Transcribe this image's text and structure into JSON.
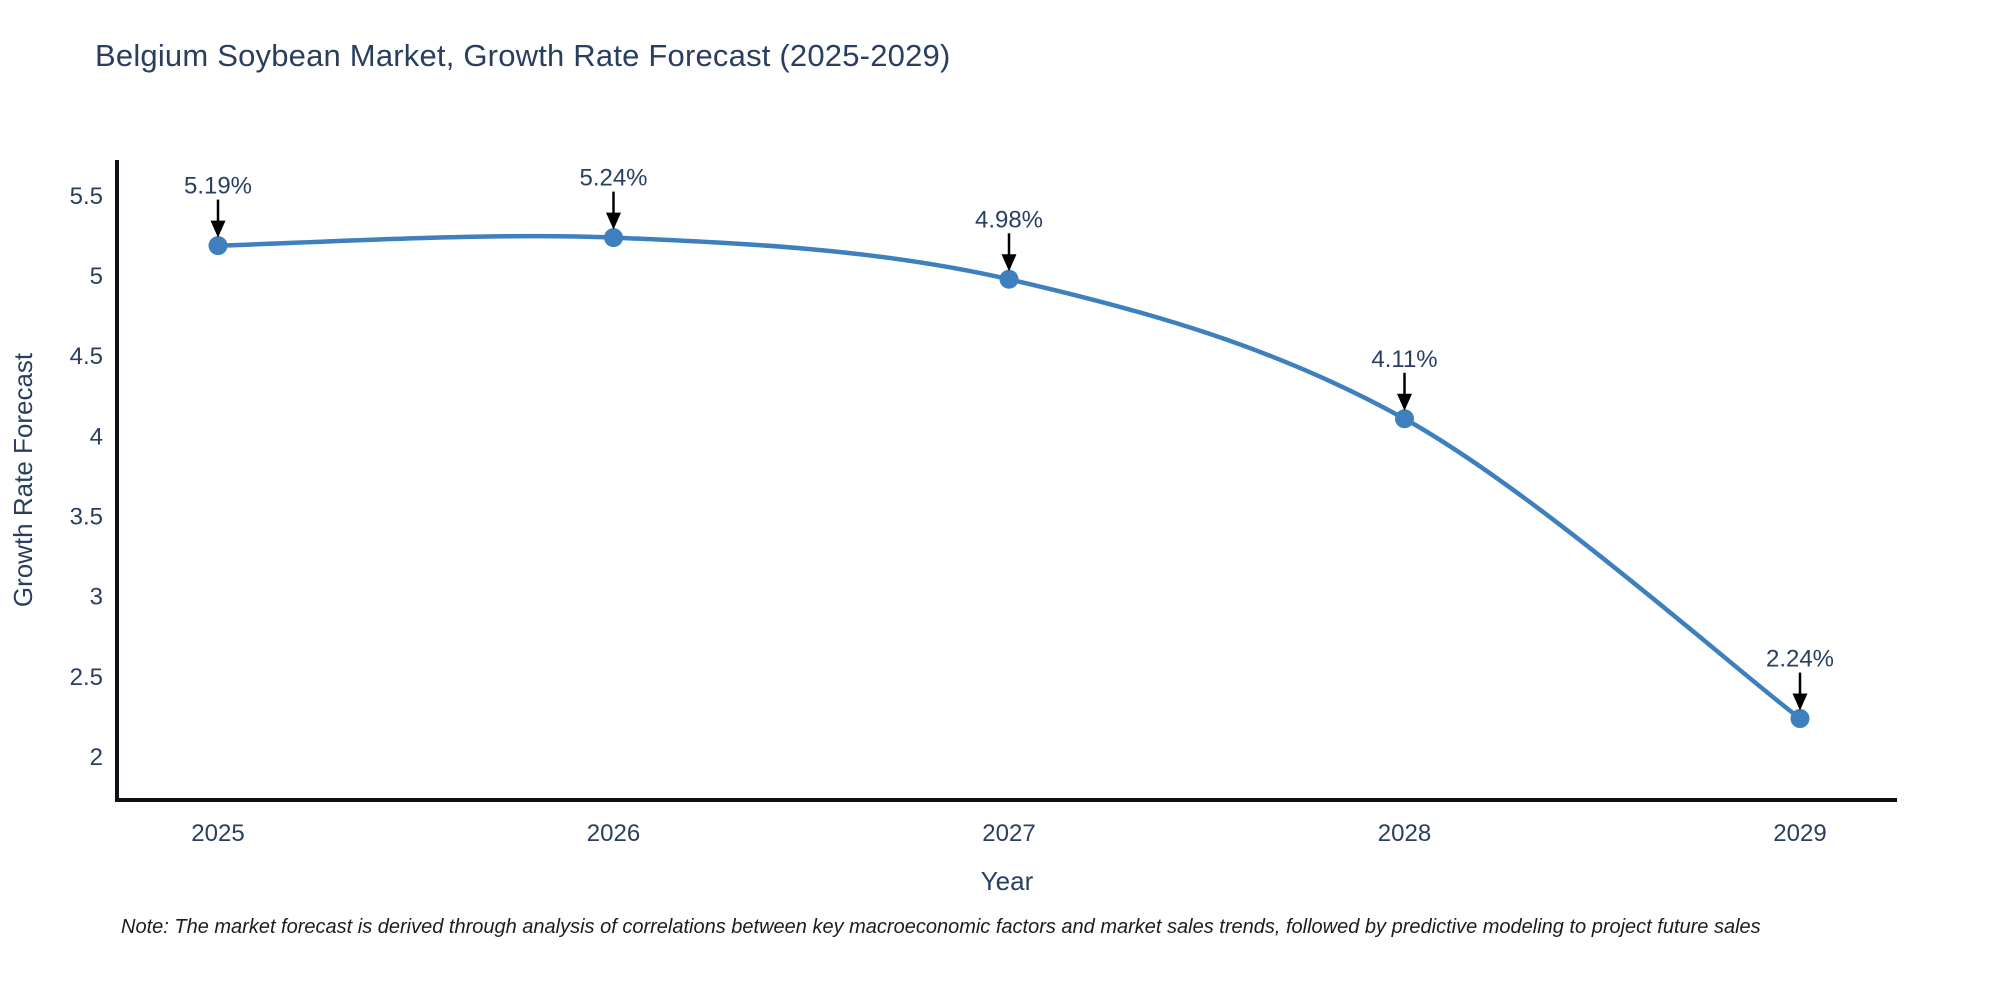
{
  "title": "Belgium Soybean Market, Growth Rate Forecast (2025-2029)",
  "note": "Note: The market forecast is derived through analysis of correlations between key macroeconomic factors and market sales trends, followed by predictive modeling to project future sales",
  "chart_data": {
    "type": "line",
    "title": "Belgium Soybean Market, Growth Rate Forecast (2025-2029)",
    "xlabel": "Year",
    "ylabel": "Growth Rate Forecast",
    "categories": [
      "2025",
      "2026",
      "2027",
      "2028",
      "2029"
    ],
    "values": [
      5.19,
      5.24,
      4.98,
      4.11,
      2.24
    ],
    "point_labels": [
      "5.19%",
      "5.24%",
      "4.98%",
      "4.11%",
      "2.24%"
    ],
    "yticks": [
      2,
      2.5,
      3,
      3.5,
      4,
      4.5,
      5,
      5.5
    ],
    "ylim": [
      1.732,
      5.724
    ],
    "line_shape": "spline",
    "grid": false,
    "legend": false,
    "line_color": "#3d80bd",
    "marker_color": "#3d80bd",
    "axis_line_color": "#0d1117",
    "tick_label_color": "#2a3f5f",
    "annotation_text_color": "#2a3f5f",
    "annotation_arrow_color": "#000000"
  }
}
